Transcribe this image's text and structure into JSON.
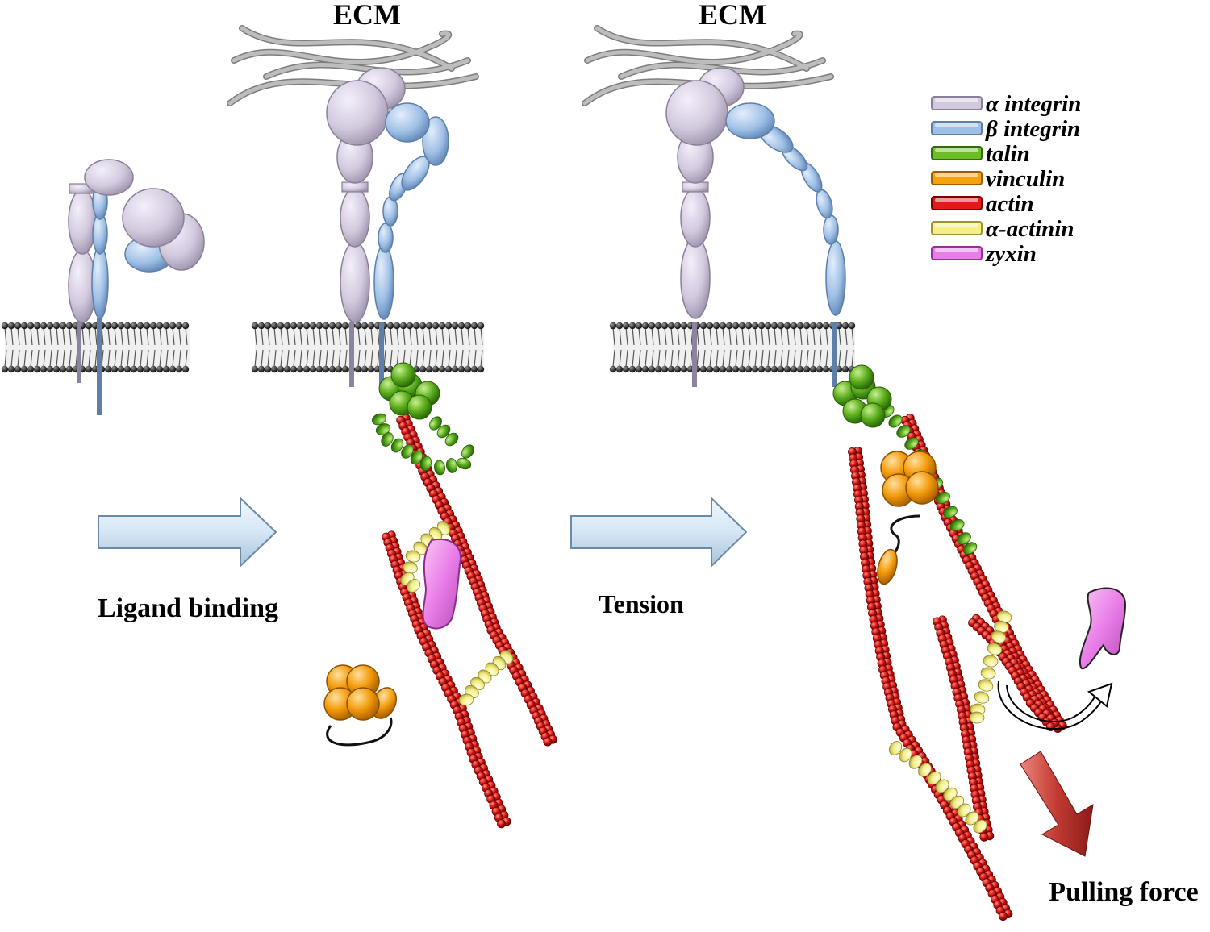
{
  "labels": {
    "ecm_1": "ECM",
    "ecm_2": "ECM",
    "arrow_1": "Ligand binding",
    "arrow_2": "Tension",
    "force": "Pulling force"
  },
  "legend": [
    {
      "label": "α integrin",
      "color": "#d3c9de",
      "stroke": "#8a7f98"
    },
    {
      "label": "β integrin",
      "color": "#9fc0e6",
      "stroke": "#5d7fa8"
    },
    {
      "label": "talin",
      "color": "#6cbd26",
      "stroke": "#2f6d0b"
    },
    {
      "label": "vinculin",
      "color": "#f5a20f",
      "stroke": "#9a5e00"
    },
    {
      "label": "actin",
      "color": "#e01b1b",
      "stroke": "#7a0000"
    },
    {
      "label": "α-actinin",
      "color": "#f4ef86",
      "stroke": "#9a9434"
    },
    {
      "label": "zyxin",
      "color": "#ea7ee8",
      "stroke": "#96309a"
    }
  ],
  "colors": {
    "alpha_integrin": "#d3c9de",
    "beta_integrin": "#9fc0e6",
    "talin": "#6cbd26",
    "vinculin": "#f5a20f",
    "actin": "#d01010",
    "actinin": "#f4ef86",
    "zyxin": "#ea7ee8",
    "ecm_fiber": "#a9a9a9",
    "membrane": "#3a3a3a",
    "process_arrow": "#d4e6f5",
    "force_arrow": "#c23a33"
  }
}
